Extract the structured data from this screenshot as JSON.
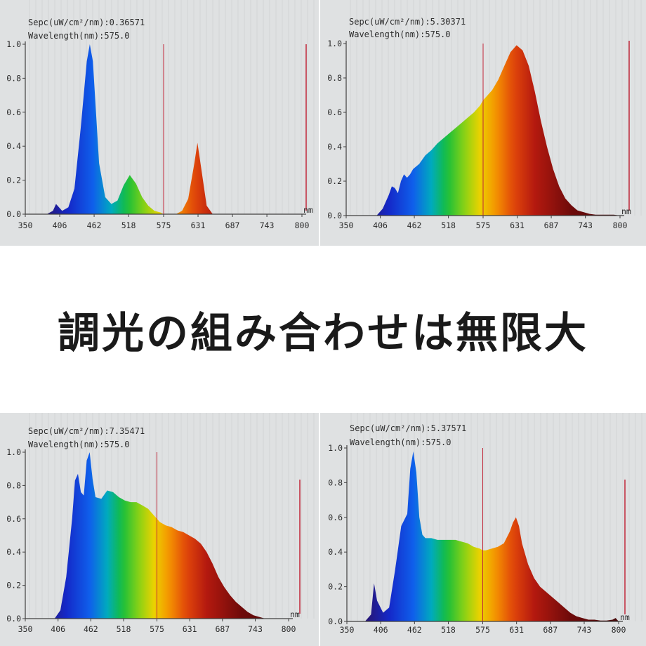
{
  "banner": {
    "title": "調光の組み合わせは無限大"
  },
  "colors": {
    "panel_bg": "#dfe1e2",
    "marker_line": "#c0283a",
    "axis": "#404040"
  },
  "chart_data": [
    {
      "type": "area",
      "header": {
        "sepc": "Sepc(uW/cm²/nm):0.36571",
        "wavelength": "Wavelength(nm):575.0"
      },
      "xlim": [
        350,
        800
      ],
      "ylim": [
        0,
        1
      ],
      "xticks": [
        "350",
        "406",
        "462",
        "518",
        "575",
        "631",
        "687",
        "743",
        "800"
      ],
      "yticks": [
        "0.0",
        "0.2",
        "0.4",
        "0.6",
        "0.8",
        "1.0"
      ],
      "x_unit": "nm",
      "marker_x": 575,
      "x": [
        385,
        395,
        400,
        410,
        420,
        430,
        440,
        450,
        455,
        460,
        465,
        470,
        480,
        490,
        500,
        510,
        520,
        530,
        540,
        550,
        560,
        570,
        575,
        585,
        595,
        605,
        615,
        625,
        630,
        635,
        645,
        655
      ],
      "y": [
        0,
        0.02,
        0.06,
        0.02,
        0.04,
        0.15,
        0.5,
        0.9,
        1.0,
        0.9,
        0.6,
        0.3,
        0.1,
        0.06,
        0.08,
        0.17,
        0.23,
        0.18,
        0.1,
        0.05,
        0.02,
        0.01,
        0,
        0,
        0,
        0.02,
        0.09,
        0.3,
        0.42,
        0.3,
        0.05,
        0
      ]
    },
    {
      "type": "area",
      "header": {
        "sepc": "Sepc(uW/cm²/nm):5.30371",
        "wavelength": "Wavelength(nm):575.0"
      },
      "xlim": [
        350,
        800
      ],
      "ylim": [
        0,
        1
      ],
      "xticks": [
        "350",
        "406",
        "462",
        "518",
        "575",
        "631",
        "687",
        "743",
        "800"
      ],
      "yticks": [
        "0.0",
        "0.2",
        "0.4",
        "0.6",
        "0.8",
        "1.0"
      ],
      "x_unit": "nm",
      "marker_x": 575,
      "x": [
        400,
        410,
        420,
        425,
        430,
        435,
        440,
        445,
        450,
        455,
        460,
        470,
        480,
        490,
        500,
        510,
        520,
        530,
        540,
        550,
        560,
        570,
        575,
        580,
        590,
        600,
        610,
        620,
        630,
        640,
        650,
        660,
        670,
        680,
        690,
        700,
        710,
        720,
        730,
        740,
        750,
        760,
        770,
        780,
        790,
        800
      ],
      "y": [
        0,
        0.04,
        0.12,
        0.17,
        0.16,
        0.13,
        0.2,
        0.24,
        0.22,
        0.24,
        0.27,
        0.3,
        0.35,
        0.38,
        0.42,
        0.45,
        0.48,
        0.51,
        0.54,
        0.57,
        0.6,
        0.64,
        0.67,
        0.69,
        0.73,
        0.79,
        0.87,
        0.95,
        0.99,
        0.96,
        0.87,
        0.72,
        0.55,
        0.4,
        0.27,
        0.17,
        0.1,
        0.06,
        0.03,
        0.02,
        0.01,
        0.005,
        0.005,
        0.005,
        0.005,
        0
      ]
    },
    {
      "type": "area",
      "header": {
        "sepc": "Sepc(uW/cm²/nm):7.35471",
        "wavelength": "Wavelength(nm):575.0"
      },
      "xlim": [
        350,
        800
      ],
      "ylim": [
        0,
        1
      ],
      "xticks": [
        "350",
        "406",
        "462",
        "518",
        "575",
        "631",
        "687",
        "743",
        "800"
      ],
      "yticks": [
        "0.0",
        "0.2",
        "0.4",
        "0.6",
        "0.8",
        "1.0"
      ],
      "x_unit": "nm",
      "marker_x": 575,
      "x": [
        400,
        410,
        420,
        430,
        435,
        440,
        445,
        450,
        455,
        460,
        465,
        470,
        480,
        490,
        500,
        510,
        520,
        530,
        540,
        550,
        560,
        570,
        575,
        580,
        590,
        600,
        610,
        620,
        630,
        640,
        650,
        660,
        670,
        680,
        690,
        700,
        710,
        720,
        730,
        740,
        750,
        760
      ],
      "y": [
        0,
        0.05,
        0.25,
        0.6,
        0.83,
        0.87,
        0.76,
        0.74,
        0.95,
        1.0,
        0.84,
        0.73,
        0.72,
        0.77,
        0.76,
        0.73,
        0.71,
        0.7,
        0.7,
        0.68,
        0.66,
        0.62,
        0.6,
        0.58,
        0.56,
        0.55,
        0.53,
        0.52,
        0.5,
        0.48,
        0.45,
        0.4,
        0.33,
        0.25,
        0.19,
        0.14,
        0.1,
        0.07,
        0.04,
        0.02,
        0.01,
        0
      ]
    },
    {
      "type": "area",
      "header": {
        "sepc": "Sepc(uW/cm²/nm):5.37571",
        "wavelength": "Wavelength(nm):575.0"
      },
      "xlim": [
        350,
        800
      ],
      "ylim": [
        0,
        1
      ],
      "xticks": [
        "350",
        "406",
        "462",
        "518",
        "575",
        "631",
        "687",
        "743",
        "800"
      ],
      "yticks": [
        "0.0",
        "0.2",
        "0.4",
        "0.6",
        "0.8",
        "1.0"
      ],
      "x_unit": "nm",
      "marker_x": 575,
      "x": [
        380,
        390,
        395,
        400,
        410,
        420,
        430,
        440,
        450,
        455,
        460,
        465,
        470,
        475,
        480,
        490,
        500,
        510,
        520,
        530,
        540,
        550,
        560,
        570,
        575,
        580,
        590,
        600,
        610,
        620,
        625,
        630,
        635,
        640,
        650,
        660,
        670,
        680,
        690,
        700,
        710,
        720,
        730,
        740,
        750,
        760,
        770,
        780,
        790,
        795,
        800
      ],
      "y": [
        0,
        0.04,
        0.22,
        0.12,
        0.05,
        0.08,
        0.3,
        0.55,
        0.62,
        0.88,
        0.98,
        0.86,
        0.6,
        0.5,
        0.48,
        0.48,
        0.47,
        0.47,
        0.47,
        0.47,
        0.46,
        0.45,
        0.43,
        0.42,
        0.41,
        0.41,
        0.42,
        0.43,
        0.45,
        0.52,
        0.57,
        0.6,
        0.55,
        0.45,
        0.33,
        0.25,
        0.2,
        0.17,
        0.14,
        0.11,
        0.08,
        0.05,
        0.03,
        0.02,
        0.01,
        0.01,
        0.005,
        0.005,
        0.01,
        0.02,
        0
      ]
    }
  ]
}
